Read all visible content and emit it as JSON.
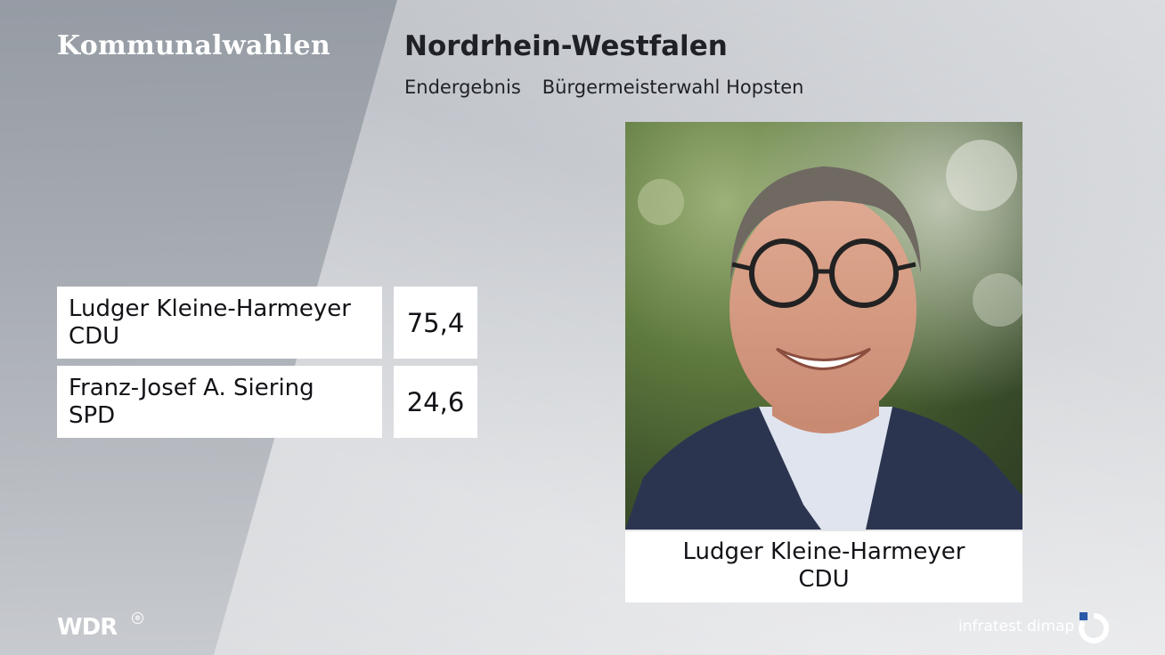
{
  "header": {
    "brand": "Kommunalwahlen",
    "title": "Nordrhein-Westfalen",
    "subtitle_left": "Endergebnis",
    "subtitle_right": "Bürgermeisterwahl Hopsten"
  },
  "results": [
    {
      "name": "Ludger Kleine-Harmeyer",
      "party": "CDU",
      "value": "75,4"
    },
    {
      "name": "Franz-Josef A. Siering",
      "party": "SPD",
      "value": "24,6"
    }
  ],
  "winner": {
    "name": "Ludger Kleine-Harmeyer",
    "party": "CDU",
    "photo_icon": "portrait-photo-icon"
  },
  "footer": {
    "broadcaster_logo": "WDR",
    "registered_mark": "®",
    "pollster_name": "infratest dimap",
    "pollster_icon": "infratest-dimap-logo-icon"
  },
  "colors": {
    "panel_bg": "#ffffff",
    "text_dark": "#121317",
    "pollster_blue": "#2a5aa8"
  }
}
